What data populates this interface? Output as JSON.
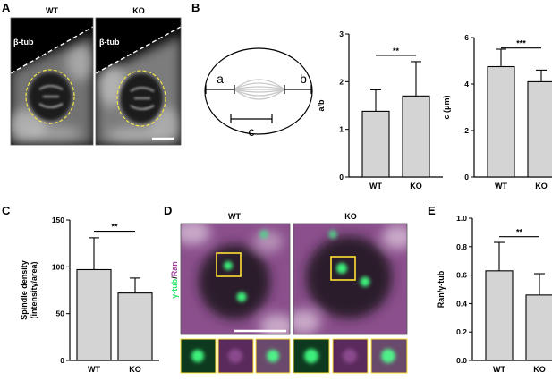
{
  "panels": {
    "A": {
      "letter": "A",
      "wt_label": "WT",
      "ko_label": "KO",
      "stain": "β-tub"
    },
    "B": {
      "letter": "B",
      "diagram_labels": {
        "a": "a",
        "b": "b",
        "c": "c"
      }
    },
    "C": {
      "letter": "C"
    },
    "D": {
      "letter": "D",
      "wt_label": "WT",
      "ko_label": "KO",
      "channel_green": "γ-tub",
      "channel_sep": "/",
      "channel_magenta": "Ran"
    },
    "E": {
      "letter": "E"
    }
  },
  "colors": {
    "bar_fill": "#d4d4d4",
    "green": "#2ee66b",
    "magenta": "#9b3a9e",
    "yellow_box": "#ffe033",
    "yellow_dash": "#f2e64a"
  },
  "chart_data": [
    {
      "id": "B-ab",
      "type": "bar",
      "ylabel": "a/b",
      "categories": [
        "WT",
        "KO"
      ],
      "values": [
        1.38,
        1.7
      ],
      "errors": [
        0.45,
        0.72
      ],
      "ylim": [
        0,
        3
      ],
      "yticks": [
        "0",
        "1",
        "2",
        "3"
      ],
      "significance": "**"
    },
    {
      "id": "B-c",
      "type": "bar",
      "ylabel": "c (μm)",
      "categories": [
        "WT",
        "KO"
      ],
      "values": [
        4.75,
        4.1
      ],
      "errors": [
        0.75,
        0.5
      ],
      "ylim": [
        0,
        6
      ],
      "yticks": [
        "0",
        "2",
        "4",
        "6"
      ],
      "significance": "***"
    },
    {
      "id": "C",
      "type": "bar",
      "ylabel": "Spindle density",
      "ylabel2": "(intensity/area)",
      "categories": [
        "WT",
        "KO"
      ],
      "values": [
        97,
        72
      ],
      "errors": [
        34,
        16
      ],
      "ylim": [
        0,
        150
      ],
      "yticks": [
        "0",
        "50",
        "100",
        "150"
      ],
      "significance": "**"
    },
    {
      "id": "E",
      "type": "bar",
      "ylabel": "Ran/γ-tub",
      "categories": [
        "WT",
        "KO"
      ],
      "values": [
        0.63,
        0.46
      ],
      "errors": [
        0.2,
        0.15
      ],
      "ylim": [
        0,
        1.0
      ],
      "yticks": [
        "0.0",
        "0.2",
        "0.4",
        "0.6",
        "0.8",
        "1.0"
      ],
      "significance": "**"
    }
  ]
}
